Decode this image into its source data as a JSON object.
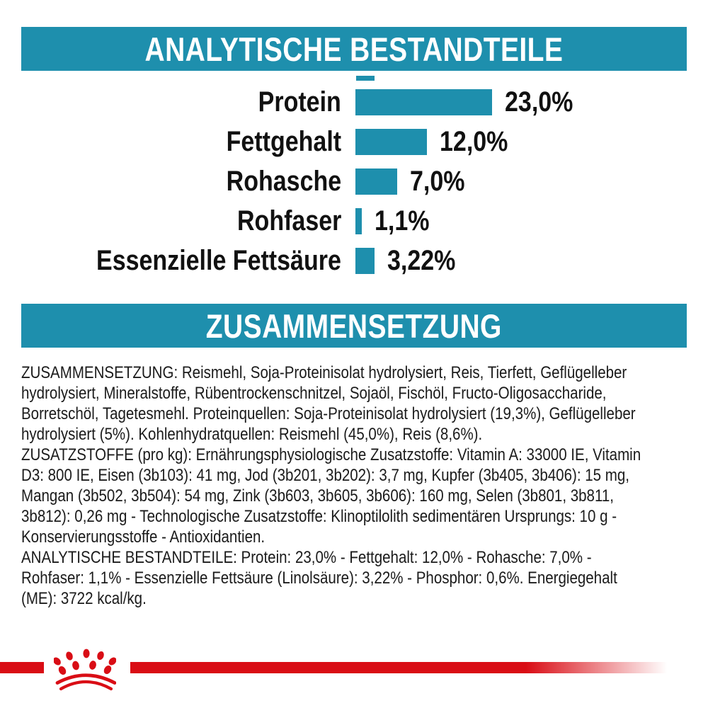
{
  "page": {
    "background": "#ffffff",
    "accent_teal": "#1E8FAD",
    "accent_red": "#D90D15",
    "text_color": "#1b1b1b"
  },
  "sections": {
    "analytical": {
      "title": "ANALYTISCHE BESTANDTEILE"
    },
    "composition": {
      "title": "ZUSAMMENSETZUNG"
    }
  },
  "chart_data": {
    "type": "bar",
    "orientation": "horizontal",
    "title": "ANALYTISCHE BESTANDTEILE",
    "categories": [
      "Protein",
      "Fettgehalt",
      "Rohasche",
      "Rohfaser",
      "Essenzielle Fettsäure"
    ],
    "values": [
      23.0,
      12.0,
      7.0,
      1.1,
      3.22
    ],
    "display_values": [
      "23,0%",
      "12,0%",
      "7,0%",
      "1,1%",
      "3,22%"
    ],
    "unit": "%",
    "xlim": [
      0,
      25
    ],
    "bar_color": "#1E8FAD",
    "grid": false,
    "value_labels": "right-of-bar"
  },
  "body": {
    "paragraphs": [
      {
        "name": "zusammensetzung",
        "lines": [
          "ZUSAMMENSETZUNG: Reismehl, Soja-Proteinisolat hydrolysiert, Reis, Tierfett, Geflügelleber",
          "hydrolysiert, Mineralstoffe, Rübentrockenschnitzel, Sojaöl, Fischöl, Fructo-Oligosaccharide,",
          "Borretschöl, Tagetesmehl. Proteinquellen: Soja-Proteinisolat hydrolysiert (19,3%), Geflügelleber",
          "hydrolysiert (5%). Kohlenhydratquellen: Reismehl (45,0%), Reis (8,6%)."
        ]
      },
      {
        "name": "zusatzstoffe",
        "lines": [
          "ZUSATZSTOFFE (pro kg): Ernährungsphysiologische Zusatzstoffe: Vitamin A: 33000 IE, Vitamin",
          "D3: 800 IE, Eisen (3b103): 41 mg, Jod (3b201, 3b202): 3,7 mg, Kupfer (3b405, 3b406): 15 mg,",
          "Mangan (3b502, 3b504): 54 mg, Zink (3b603, 3b605, 3b606): 160 mg, Selen (3b801, 3b811,",
          "3b812): 0,26 mg - Technologische Zusatzstoffe: Klinoptilolith sedimentären Ursprungs: 10 g -",
          "Konservierungsstoffe - Antioxidantien."
        ]
      },
      {
        "name": "analytische-bestandteile",
        "lines": [
          "ANALYTISCHE BESTANDTEILE: Protein: 23,0% - Fettgehalt: 12,0% - Rohasche: 7,0% -",
          "Rohfaser: 1,1% - Essenzielle Fettsäure (Linolsäure): 3,22% - Phosphor: 0,6%. Energiegehalt",
          "(ME): 3722 kcal/kg."
        ]
      }
    ]
  },
  "footer": {
    "logo": "royal-canin-crown"
  }
}
